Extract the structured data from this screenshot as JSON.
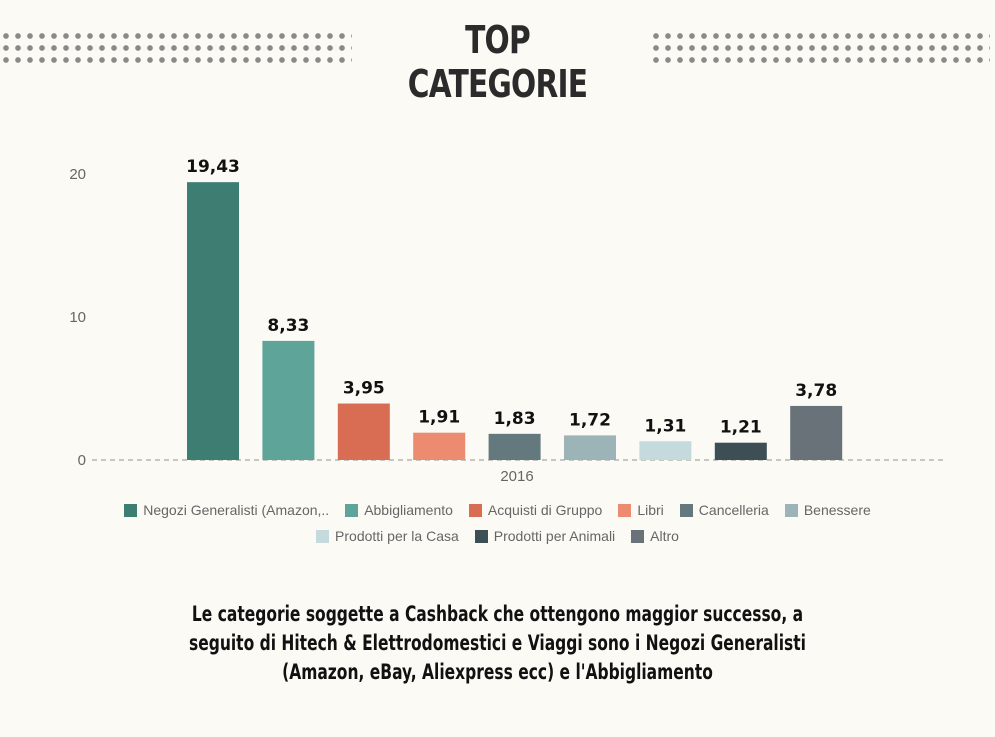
{
  "title": {
    "line1": "TOP",
    "line2": "CATEGORIE"
  },
  "chart_data": {
    "type": "bar",
    "title": "TOP CATEGORIE",
    "xlabel": "",
    "ylabel": "",
    "categories": [
      "2016"
    ],
    "ylim": [
      0,
      21
    ],
    "yticks": [
      0,
      10,
      20
    ],
    "grid": false,
    "legend_placement": "bottom",
    "series": [
      {
        "name": "Negozi Generalisti (Amazon,..",
        "value": 19.43,
        "label": "19,43",
        "color": "#3e7d72"
      },
      {
        "name": "Abbigliamento",
        "value": 8.33,
        "label": "8,33",
        "color": "#5fa499"
      },
      {
        "name": "Acquisti di Gruppo",
        "value": 3.95,
        "label": "3,95",
        "color": "#d86d54"
      },
      {
        "name": "Libri",
        "value": 1.91,
        "label": "1,91",
        "color": "#ec8b70"
      },
      {
        "name": "Cancelleria",
        "value": 1.83,
        "label": "1,83",
        "color": "#64797e"
      },
      {
        "name": "Benessere",
        "value": 1.72,
        "label": "1,72",
        "color": "#9cb3b7"
      },
      {
        "name": "Prodotti per la Casa",
        "value": 1.31,
        "label": "1,31",
        "color": "#c5dadc"
      },
      {
        "name": "Prodotti per Animali",
        "value": 1.21,
        "label": "1,21",
        "color": "#3d4e54"
      },
      {
        "name": "Altro",
        "value": 3.78,
        "label": "3,78",
        "color": "#687278"
      }
    ]
  },
  "caption": {
    "line1": "Le categorie soggette a Cashback che ottengono maggior successo, a",
    "line2": "seguito di Hitech & Elettrodomestici e Viaggi sono i Negozi Generalisti",
    "line3": "(Amazon, eBay, Aliexpress ecc) e l'Abbigliamento"
  }
}
